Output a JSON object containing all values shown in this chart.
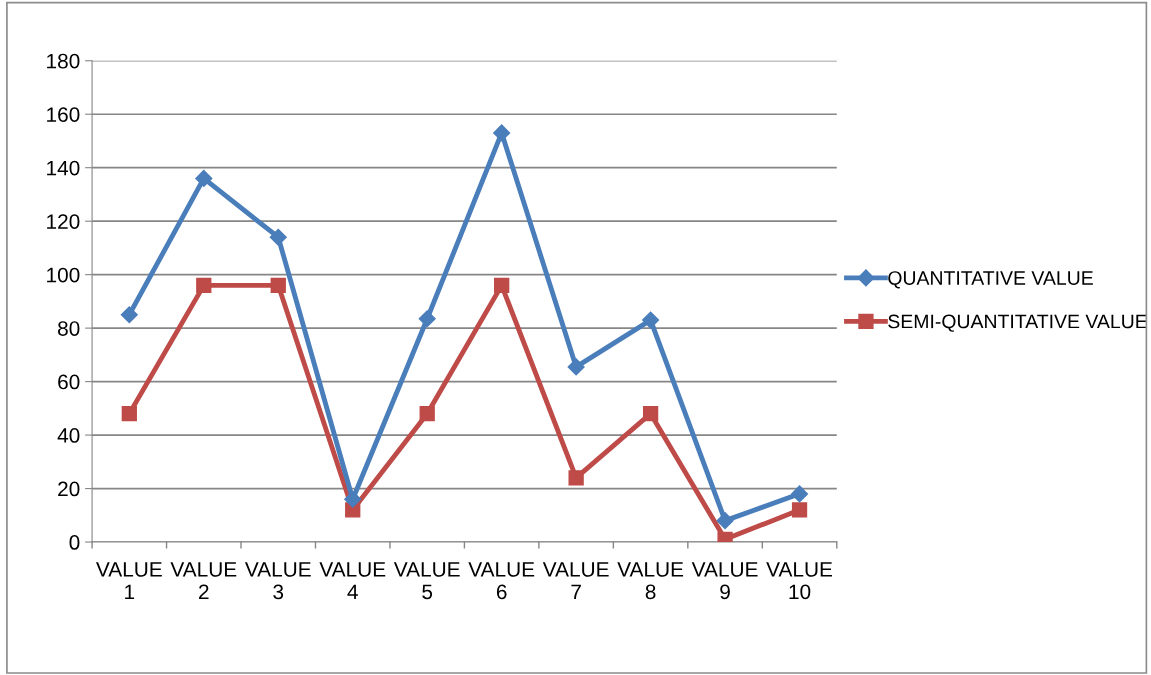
{
  "chart_data": {
    "type": "line",
    "categories": [
      "VALUE 1",
      "VALUE 2",
      "VALUE 3",
      "VALUE 4",
      "VALUE 5",
      "VALUE 6",
      "VALUE 7",
      "VALUE 8",
      "VALUE 9",
      "VALUE 10"
    ],
    "series": [
      {
        "name": "QUANTITATIVE VALUE",
        "color": "#4a7ebb",
        "marker": "diamond",
        "values": [
          85,
          136,
          114,
          16,
          83.5,
          153,
          65.5,
          83,
          8,
          18
        ]
      },
      {
        "name": "SEMI-QUANTITATIVE VALUE",
        "color": "#be4b48",
        "marker": "square",
        "values": [
          48,
          96,
          96,
          12,
          48,
          96,
          24,
          48,
          1,
          12
        ]
      }
    ],
    "ylim": [
      0,
      180
    ],
    "yticks": [
      0,
      20,
      40,
      60,
      80,
      100,
      120,
      140,
      160,
      180
    ],
    "grid": "y",
    "legend": "right",
    "line_style": "solid"
  }
}
